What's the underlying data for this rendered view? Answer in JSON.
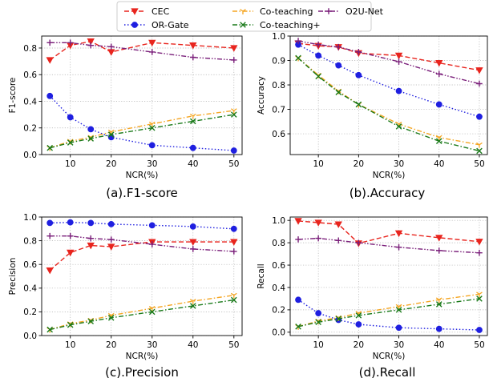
{
  "colors": {
    "CEC": "#e8251e",
    "OR-Gate": "#1f1fe0",
    "Co-teaching": "#f5a623",
    "Co-teaching+": "#1a7a1a",
    "O2U-Net": "#7a1f7a"
  },
  "legend": {
    "placement": "top-center",
    "entries": [
      {
        "name": "CEC",
        "marker": "triangle-down",
        "line": "dashed"
      },
      {
        "name": "OR-Gate",
        "marker": "circle",
        "line": "dotted"
      },
      {
        "name": "Co-teaching",
        "marker": "tri-down",
        "line": "dashdot"
      },
      {
        "name": "Co-teaching+",
        "marker": "x",
        "line": "dashdot"
      },
      {
        "name": "O2U-Net",
        "marker": "plus",
        "line": "dashdotdot"
      }
    ]
  },
  "chart_data": [
    {
      "type": "line",
      "caption": "(a).F1-score",
      "xlabel": "NCR(%)",
      "ylabel": "F1-score",
      "grid": true,
      "x": [
        5,
        10,
        15,
        20,
        30,
        40,
        50
      ],
      "xticks": [
        10,
        20,
        30,
        40,
        50
      ],
      "xlim": [
        3,
        52
      ],
      "ylim": [
        0.0,
        0.89
      ],
      "yticks": [
        "0.0",
        "0.2",
        "0.4",
        "0.6",
        "0.8"
      ],
      "ytick_values": [
        0.0,
        0.2,
        0.4,
        0.6,
        0.8
      ],
      "series": [
        {
          "name": "CEC",
          "values": [
            0.71,
            0.82,
            0.85,
            0.77,
            0.84,
            0.82,
            0.8
          ]
        },
        {
          "name": "OR-Gate",
          "values": [
            0.44,
            0.28,
            0.19,
            0.13,
            0.07,
            0.05,
            0.03
          ]
        },
        {
          "name": "Co-teaching",
          "values": [
            0.05,
            0.1,
            0.13,
            0.17,
            0.23,
            0.29,
            0.33
          ]
        },
        {
          "name": "Co-teaching+",
          "values": [
            0.05,
            0.09,
            0.12,
            0.15,
            0.2,
            0.25,
            0.3
          ]
        },
        {
          "name": "O2U-Net",
          "values": [
            0.84,
            0.84,
            0.82,
            0.81,
            0.77,
            0.73,
            0.71
          ]
        }
      ]
    },
    {
      "type": "line",
      "caption": "(b).Accuracy",
      "xlabel": "NCR(%)",
      "ylabel": "Accuracy",
      "grid": true,
      "x": [
        5,
        10,
        15,
        20,
        30,
        40,
        50
      ],
      "xticks": [
        10,
        20,
        30,
        40,
        50
      ],
      "xlim": [
        3,
        52
      ],
      "ylim": [
        0.515,
        1.0
      ],
      "yticks": [
        "0.6",
        "0.7",
        "0.8",
        "0.9",
        "1.0"
      ],
      "ytick_values": [
        0.6,
        0.7,
        0.8,
        0.9,
        1.0
      ],
      "series": [
        {
          "name": "CEC",
          "values": [
            0.97,
            0.96,
            0.955,
            0.93,
            0.92,
            0.89,
            0.86
          ]
        },
        {
          "name": "OR-Gate",
          "values": [
            0.965,
            0.92,
            0.88,
            0.84,
            0.775,
            0.72,
            0.67
          ]
        },
        {
          "name": "Co-teaching",
          "values": [
            0.91,
            0.84,
            0.775,
            0.72,
            0.64,
            0.585,
            0.555
          ]
        },
        {
          "name": "Co-teaching+",
          "values": [
            0.91,
            0.835,
            0.77,
            0.72,
            0.63,
            0.57,
            0.53
          ]
        },
        {
          "name": "O2U-Net",
          "values": [
            0.98,
            0.965,
            0.955,
            0.935,
            0.895,
            0.845,
            0.805
          ]
        }
      ]
    },
    {
      "type": "line",
      "caption": "(c).Precision",
      "xlabel": "NCR(%)",
      "ylabel": "Precision",
      "grid": true,
      "x": [
        5,
        10,
        15,
        20,
        30,
        40,
        50
      ],
      "xticks": [
        10,
        20,
        30,
        40,
        50
      ],
      "xlim": [
        3,
        52
      ],
      "ylim": [
        0.0,
        1.0
      ],
      "yticks": [
        "0.0",
        "0.2",
        "0.4",
        "0.6",
        "0.8",
        "1.0"
      ],
      "ytick_values": [
        0.0,
        0.2,
        0.4,
        0.6,
        0.8,
        1.0
      ],
      "series": [
        {
          "name": "CEC",
          "values": [
            0.55,
            0.7,
            0.76,
            0.75,
            0.79,
            0.79,
            0.79
          ]
        },
        {
          "name": "OR-Gate",
          "values": [
            0.95,
            0.955,
            0.95,
            0.94,
            0.93,
            0.92,
            0.9
          ]
        },
        {
          "name": "Co-teaching",
          "values": [
            0.05,
            0.1,
            0.13,
            0.17,
            0.23,
            0.29,
            0.34
          ]
        },
        {
          "name": "Co-teaching+",
          "values": [
            0.05,
            0.09,
            0.12,
            0.15,
            0.2,
            0.25,
            0.3
          ]
        },
        {
          "name": "O2U-Net",
          "values": [
            0.84,
            0.84,
            0.82,
            0.81,
            0.77,
            0.73,
            0.71
          ]
        }
      ]
    },
    {
      "type": "line",
      "caption": "(d).Recall",
      "xlabel": "NCR(%)",
      "ylabel": "Recall",
      "grid": true,
      "x": [
        5,
        10,
        15,
        20,
        30,
        40,
        50
      ],
      "xticks": [
        10,
        20,
        30,
        40,
        50
      ],
      "xlim": [
        3,
        52
      ],
      "ylim": [
        -0.03,
        1.03
      ],
      "yticks": [
        "0.0",
        "0.2",
        "0.4",
        "0.6",
        "0.8",
        "1.0"
      ],
      "ytick_values": [
        0.0,
        0.2,
        0.4,
        0.6,
        0.8,
        1.0
      ],
      "series": [
        {
          "name": "CEC",
          "values": [
            0.995,
            0.98,
            0.965,
            0.795,
            0.885,
            0.845,
            0.81
          ]
        },
        {
          "name": "OR-Gate",
          "values": [
            0.29,
            0.17,
            0.11,
            0.07,
            0.04,
            0.03,
            0.02
          ]
        },
        {
          "name": "Co-teaching",
          "values": [
            0.05,
            0.1,
            0.13,
            0.17,
            0.23,
            0.29,
            0.34
          ]
        },
        {
          "name": "Co-teaching+",
          "values": [
            0.05,
            0.09,
            0.12,
            0.15,
            0.2,
            0.25,
            0.3
          ]
        },
        {
          "name": "O2U-Net",
          "values": [
            0.83,
            0.84,
            0.82,
            0.8,
            0.76,
            0.73,
            0.71
          ]
        }
      ]
    }
  ]
}
